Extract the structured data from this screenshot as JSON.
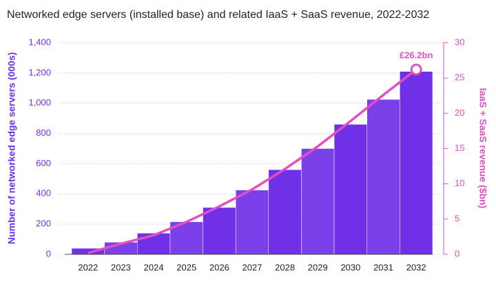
{
  "chart_data": {
    "type": "bar_line",
    "title": "Networked edge servers (installed base) and related IaaS + SaaS revenue, 2022-2032",
    "y_label": "Number of networked edge servers (000s)",
    "y2_label": "IaaS + SaaS revenue ($bn)",
    "categories": [
      "2022",
      "2023",
      "2024",
      "2025",
      "2026",
      "2027",
      "2028",
      "2029",
      "2030",
      "2031",
      "2032"
    ],
    "series": [
      {
        "name": "Networked edge servers",
        "type": "bar",
        "color": "#7030e8",
        "values": [
          40,
          80,
          140,
          215,
          310,
          425,
          560,
          700,
          860,
          1025,
          1210
        ]
      },
      {
        "name": "IaaS + SaaS revenue",
        "type": "line",
        "axis": "y2",
        "color": "#e24fc0",
        "values": [
          0.2,
          1.5,
          2.7,
          4.6,
          6.8,
          9.2,
          12.1,
          15.3,
          18.9,
          22.6,
          26.2
        ],
        "value_labels": [
          null,
          null,
          null,
          null,
          null,
          null,
          null,
          null,
          null,
          null,
          "£26.2bn"
        ]
      }
    ],
    "ylim": [
      0,
      1400
    ],
    "yticks": [
      0,
      200,
      400,
      600,
      800,
      {
        "value": 1000,
        "label": "1,000"
      },
      {
        "value": 1200,
        "label": "1,200"
      },
      {
        "value": 1400,
        "label": "1,400"
      }
    ],
    "y2lim": [
      0,
      30
    ],
    "y2ticks": [
      0,
      5,
      10,
      15,
      20,
      25,
      30
    ],
    "grid": true
  }
}
